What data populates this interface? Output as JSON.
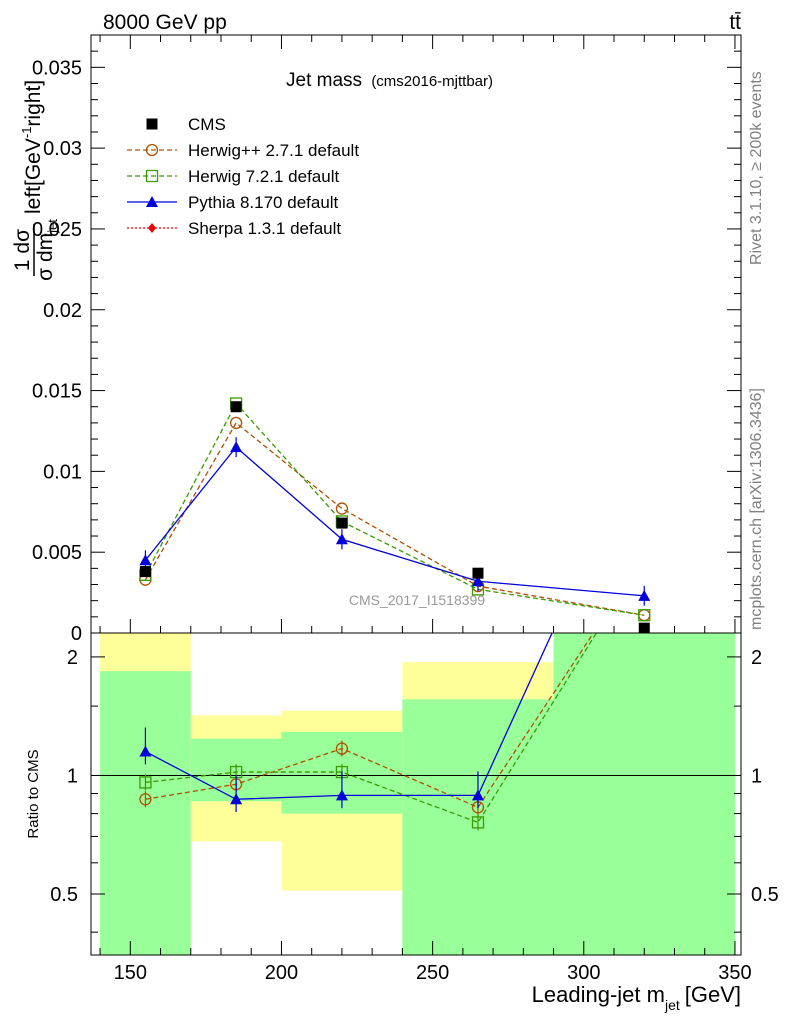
{
  "header": {
    "left": "8000 GeV pp",
    "right": "tt̄",
    "side_top": "Rivet 3.1.10, ≥ 200k events",
    "side_bottom": "mcplots.cern.ch [arXiv:1306.3436]"
  },
  "chart_data": {
    "type": "line",
    "title": "Jet mass",
    "subtitle": "(cms2016-mjttbar)",
    "watermark": "CMS_2017_I1518399",
    "xlabel": "Leading-jet m",
    "xlabel_sub": "jet",
    "xlabel_unit": "[GeV]",
    "ylabel_frac_num": "1 dσ",
    "ylabel_frac_den": "σ dm",
    "ylabel_frac_den_sub": "jet",
    "ylabel_tail": "left[GeV",
    "ylabel_tail_sup": "-1",
    "ylabel_tail_end": "right]",
    "ratio_ylabel": "Ratio to CMS",
    "xlim": [
      137,
      352
    ],
    "ylim": [
      0,
      0.037
    ],
    "ratio_ylim": [
      0.35,
      2.3
    ],
    "x_ticks": [
      150,
      200,
      250,
      300,
      350
    ],
    "x_tick_labels": [
      "150",
      "200",
      "250",
      "300",
      "350"
    ],
    "y_ticks": [
      0,
      0.005,
      0.01,
      0.015,
      0.02,
      0.025,
      0.03,
      0.035
    ],
    "y_tick_labels": [
      "0",
      "0.005",
      "0.01",
      "0.015",
      "0.02",
      "0.025",
      "0.03",
      "0.035"
    ],
    "ratio_ticks": [
      0.5,
      1,
      2
    ],
    "ratio_tick_labels": [
      "0.5",
      "1",
      "2"
    ],
    "legend_position": "top-left",
    "bins": [
      {
        "lo": 140,
        "hi": 170
      },
      {
        "lo": 170,
        "hi": 200
      },
      {
        "lo": 200,
        "hi": 240
      },
      {
        "lo": 240,
        "hi": 290
      },
      {
        "lo": 290,
        "hi": 350
      }
    ],
    "band_green": [
      [
        0.35,
        1.84
      ],
      [
        0.86,
        1.24
      ],
      [
        0.8,
        1.29
      ],
      [
        0.35,
        1.56
      ],
      [
        0.35,
        2.3
      ]
    ],
    "band_yellow": [
      [
        0.35,
        2.3
      ],
      [
        0.68,
        1.42
      ],
      [
        0.51,
        1.46
      ],
      [
        0.35,
        1.94
      ],
      [
        0.35,
        2.3
      ]
    ],
    "series": [
      {
        "name": "CMS",
        "color": "#000000",
        "marker": "square-filled",
        "dash": "",
        "x": [
          155,
          185,
          220,
          265,
          320
        ],
        "y": [
          0.0038,
          0.014,
          0.0068,
          0.0037,
          0.0003
        ],
        "ratio": []
      },
      {
        "name": "Herwig++ 2.7.1 default",
        "color": "#b05000",
        "marker": "circle-open",
        "dash": "5,3",
        "x": [
          155,
          185,
          220,
          265,
          320
        ],
        "y": [
          0.0033,
          0.013,
          0.0077,
          0.0029,
          0.0011
        ],
        "ratio": [
          0.87,
          0.95,
          1.17,
          0.83,
          3.6
        ]
      },
      {
        "name": "Herwig 7.2.1 default",
        "color": "#3a9a00",
        "marker": "square-open",
        "dash": "5,3",
        "x": [
          155,
          185,
          220,
          265,
          320
        ],
        "y": [
          0.0036,
          0.0142,
          0.0069,
          0.0027,
          0.0011
        ],
        "ratio": [
          0.96,
          1.02,
          1.02,
          0.76,
          3.6
        ]
      },
      {
        "name": "Pythia 8.170 default",
        "color": "#0000dd",
        "marker": "triangle-filled",
        "dash": "",
        "x": [
          155,
          185,
          220,
          265,
          320
        ],
        "y": [
          0.0045,
          0.0115,
          0.0058,
          0.0032,
          0.0023
        ],
        "ratio": [
          1.15,
          0.87,
          0.89,
          0.89,
          7.5
        ]
      },
      {
        "name": "Sherpa 1.3.1 default",
        "color": "#ee0000",
        "marker": "diamond-filled",
        "dash": "2,2",
        "x": [],
        "y": [],
        "ratio": []
      }
    ]
  }
}
